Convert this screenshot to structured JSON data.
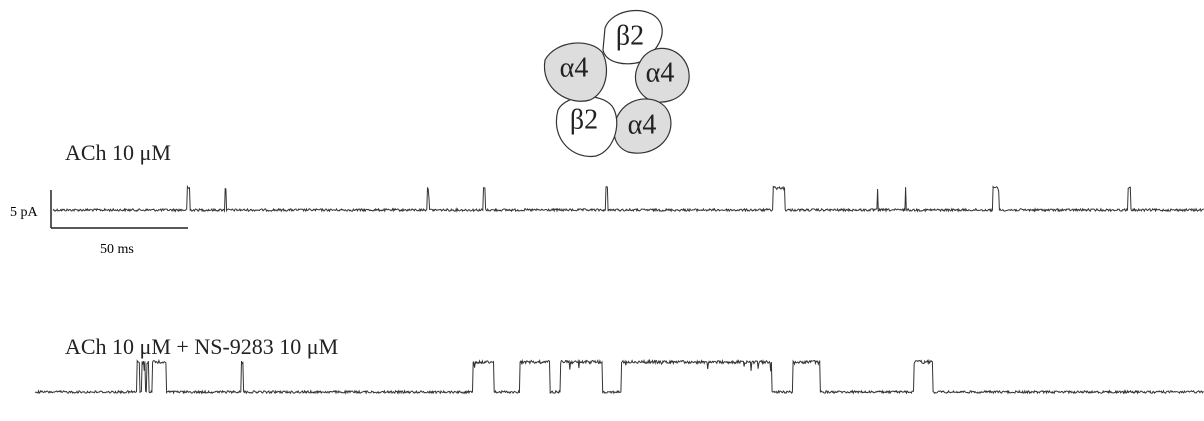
{
  "figure": {
    "subunits": [
      {
        "label": "β2"
      },
      {
        "label": "α4"
      },
      {
        "label": "α4"
      },
      {
        "label": "β2"
      },
      {
        "label": "α4"
      }
    ],
    "panels": [
      {
        "label": "ACh 10 μM"
      },
      {
        "label": "ACh 10 μM + NS-9283 10 μM"
      }
    ],
    "scale_bar": {
      "current": "5 pA",
      "time": "50 ms"
    }
  }
}
